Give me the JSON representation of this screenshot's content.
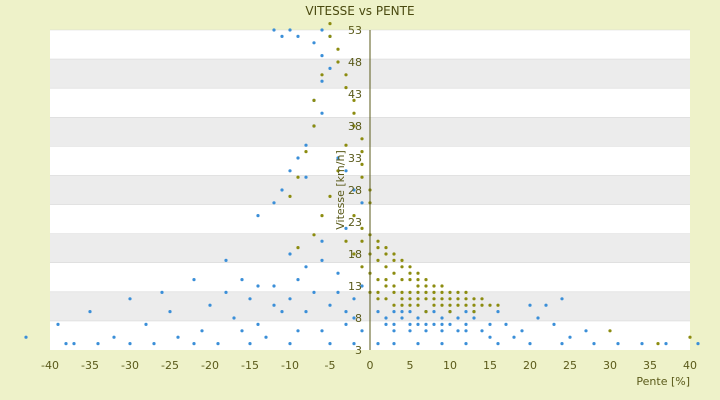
{
  "chart_data": {
    "type": "scatter",
    "title": "VITESSE vs PENTE",
    "xlabel": "Pente [%]",
    "ylabel": "Vitesse [km/h]",
    "xlim": [
      -40,
      40
    ],
    "ylim": [
      3,
      53
    ],
    "x_ticks": [
      "-40",
      "-35",
      "-30",
      "-25",
      "-20",
      "-15",
      "-10",
      "-5",
      "0",
      "5",
      "10",
      "15",
      "20",
      "25",
      "30",
      "35",
      "40"
    ],
    "y_ticks": [
      "53",
      "48",
      "43",
      "38",
      "33",
      "28",
      "23",
      "18",
      "13",
      "8",
      "3"
    ],
    "grid": true,
    "legend": "none",
    "colors": {
      "series_blue": "#3b8fd8",
      "series_olive": "#8c8c10",
      "band": "#ececec",
      "plot_bg": "#ffffff",
      "axis": "#5a5a1a"
    },
    "series": [
      {
        "values": [
          [
            -12,
            53
          ],
          [
            -11,
            52
          ],
          [
            -10,
            53
          ],
          [
            -9,
            52
          ],
          [
            -7,
            51
          ],
          [
            -6,
            53
          ],
          [
            -5,
            52
          ],
          [
            -6,
            49
          ],
          [
            -5,
            47
          ],
          [
            -6,
            45
          ],
          [
            -7,
            42
          ],
          [
            -6,
            40
          ],
          [
            -7,
            38
          ],
          [
            -8,
            35
          ],
          [
            -9,
            33
          ],
          [
            -10,
            31
          ],
          [
            -11,
            28
          ],
          [
            -12,
            26
          ],
          [
            -14,
            24
          ],
          [
            -8,
            30
          ],
          [
            -4,
            33
          ],
          [
            -3,
            31
          ],
          [
            -2,
            28
          ],
          [
            -1,
            26
          ],
          [
            -3,
            22
          ],
          [
            -6,
            20
          ],
          [
            -10,
            18
          ],
          [
            -18,
            17
          ],
          [
            -22,
            14
          ],
          [
            -26,
            12
          ],
          [
            -30,
            11
          ],
          [
            -35,
            9
          ],
          [
            -39,
            7
          ],
          [
            -43,
            5
          ],
          [
            -38,
            4
          ],
          [
            -32,
            5
          ],
          [
            -28,
            7
          ],
          [
            -25,
            9
          ],
          [
            -20,
            10
          ],
          [
            -18,
            12
          ],
          [
            -15,
            11
          ],
          [
            -12,
            13
          ],
          [
            -9,
            14
          ],
          [
            -7,
            12
          ],
          [
            -5,
            10
          ],
          [
            -3,
            9
          ],
          [
            -2,
            11
          ],
          [
            -1,
            13
          ],
          [
            -4,
            15
          ],
          [
            -6,
            17
          ],
          [
            -8,
            16
          ],
          [
            -11,
            9
          ],
          [
            -14,
            7
          ],
          [
            -17,
            8
          ],
          [
            -21,
            6
          ],
          [
            -24,
            5
          ],
          [
            -27,
            4
          ],
          [
            -30,
            4
          ],
          [
            -34,
            4
          ],
          [
            -37,
            4
          ],
          [
            -15,
            4
          ],
          [
            -10,
            4
          ],
          [
            -5,
            4
          ],
          [
            -2,
            4
          ],
          [
            -1,
            6
          ],
          [
            -3,
            7
          ],
          [
            -6,
            6
          ],
          [
            -9,
            6
          ],
          [
            -13,
            5
          ],
          [
            -16,
            6
          ],
          [
            -19,
            4
          ],
          [
            -22,
            4
          ],
          [
            -8,
            9
          ],
          [
            -10,
            11
          ],
          [
            -12,
            10
          ],
          [
            -14,
            13
          ],
          [
            -16,
            14
          ],
          [
            -4,
            12
          ],
          [
            -2,
            8
          ],
          [
            1,
            9
          ],
          [
            2,
            8
          ],
          [
            3,
            9
          ],
          [
            4,
            8
          ],
          [
            5,
            7
          ],
          [
            6,
            8
          ],
          [
            7,
            9
          ],
          [
            8,
            7
          ],
          [
            9,
            8
          ],
          [
            10,
            7
          ],
          [
            11,
            8
          ],
          [
            12,
            7
          ],
          [
            13,
            8
          ],
          [
            14,
            6
          ],
          [
            15,
            7
          ],
          [
            17,
            7
          ],
          [
            19,
            6
          ],
          [
            21,
            8
          ],
          [
            23,
            7
          ],
          [
            25,
            5
          ],
          [
            28,
            4
          ],
          [
            31,
            4
          ],
          [
            34,
            4
          ],
          [
            37,
            4
          ],
          [
            41,
            4
          ],
          [
            2,
            7
          ],
          [
            3,
            7
          ],
          [
            4,
            9
          ],
          [
            5,
            9
          ],
          [
            6,
            7
          ],
          [
            7,
            7
          ],
          [
            8,
            9
          ],
          [
            9,
            7
          ],
          [
            10,
            9
          ],
          [
            11,
            6
          ],
          [
            12,
            9
          ],
          [
            3,
            6
          ],
          [
            5,
            6
          ],
          [
            7,
            6
          ],
          [
            9,
            6
          ],
          [
            12,
            6
          ],
          [
            15,
            5
          ],
          [
            18,
            5
          ],
          [
            22,
            10
          ],
          [
            24,
            11
          ],
          [
            27,
            6
          ],
          [
            20,
            10
          ],
          [
            16,
            9
          ],
          [
            13,
            9
          ],
          [
            1,
            4
          ],
          [
            3,
            4
          ],
          [
            6,
            4
          ],
          [
            9,
            4
          ],
          [
            12,
            4
          ],
          [
            16,
            4
          ],
          [
            20,
            4
          ],
          [
            24,
            4
          ]
        ]
      },
      {
        "values": [
          [
            -5,
            54
          ],
          [
            -5,
            52
          ],
          [
            -4,
            50
          ],
          [
            -4,
            48
          ],
          [
            -3,
            46
          ],
          [
            -3,
            44
          ],
          [
            -2,
            42
          ],
          [
            -2,
            40
          ],
          [
            -2,
            38
          ],
          [
            -1,
            36
          ],
          [
            -1,
            34
          ],
          [
            -1,
            32
          ],
          [
            -1,
            30
          ],
          [
            0,
            28
          ],
          [
            0,
            26
          ],
          [
            -6,
            46
          ],
          [
            -7,
            42
          ],
          [
            -7,
            38
          ],
          [
            -8,
            34
          ],
          [
            -9,
            30
          ],
          [
            -10,
            27
          ],
          [
            -3,
            35
          ],
          [
            -4,
            31
          ],
          [
            -5,
            27
          ],
          [
            -6,
            24
          ],
          [
            -7,
            21
          ],
          [
            -9,
            19
          ],
          [
            -2,
            24
          ],
          [
            -1,
            22
          ],
          [
            0,
            21
          ],
          [
            1,
            20
          ],
          [
            2,
            19
          ],
          [
            3,
            18
          ],
          [
            4,
            17
          ],
          [
            5,
            16
          ],
          [
            6,
            15
          ],
          [
            7,
            14
          ],
          [
            8,
            13
          ],
          [
            9,
            13
          ],
          [
            10,
            12
          ],
          [
            11,
            12
          ],
          [
            12,
            11
          ],
          [
            13,
            11
          ],
          [
            14,
            10
          ],
          [
            15,
            10
          ],
          [
            16,
            10
          ],
          [
            1,
            17
          ],
          [
            2,
            16
          ],
          [
            3,
            15
          ],
          [
            4,
            14
          ],
          [
            5,
            14
          ],
          [
            6,
            13
          ],
          [
            7,
            12
          ],
          [
            8,
            12
          ],
          [
            9,
            11
          ],
          [
            10,
            11
          ],
          [
            11,
            10
          ],
          [
            12,
            10
          ],
          [
            13,
            9
          ],
          [
            1,
            14
          ],
          [
            2,
            13
          ],
          [
            3,
            13
          ],
          [
            4,
            12
          ],
          [
            5,
            12
          ],
          [
            6,
            11
          ],
          [
            7,
            11
          ],
          [
            8,
            10
          ],
          [
            9,
            10
          ],
          [
            10,
            9
          ],
          [
            1,
            11
          ],
          [
            2,
            11
          ],
          [
            3,
            10
          ],
          [
            4,
            10
          ],
          [
            5,
            10
          ],
          [
            6,
            10
          ],
          [
            7,
            9
          ],
          [
            2,
            18
          ],
          [
            3,
            17
          ],
          [
            4,
            16
          ],
          [
            5,
            15
          ],
          [
            6,
            14
          ],
          [
            1,
            19
          ],
          [
            0,
            18
          ],
          [
            0,
            15
          ],
          [
            0,
            12
          ],
          [
            1,
            12
          ],
          [
            2,
            14
          ],
          [
            3,
            12
          ],
          [
            4,
            11
          ],
          [
            5,
            11
          ],
          [
            6,
            12
          ],
          [
            7,
            13
          ],
          [
            8,
            11
          ],
          [
            9,
            12
          ],
          [
            10,
            10
          ],
          [
            11,
            11
          ],
          [
            12,
            12
          ],
          [
            13,
            10
          ],
          [
            14,
            11
          ],
          [
            -1,
            20
          ],
          [
            -2,
            18
          ],
          [
            -3,
            20
          ],
          [
            -1,
            16
          ],
          [
            30,
            6
          ],
          [
            36,
            4
          ],
          [
            40,
            5
          ]
        ]
      }
    ]
  }
}
